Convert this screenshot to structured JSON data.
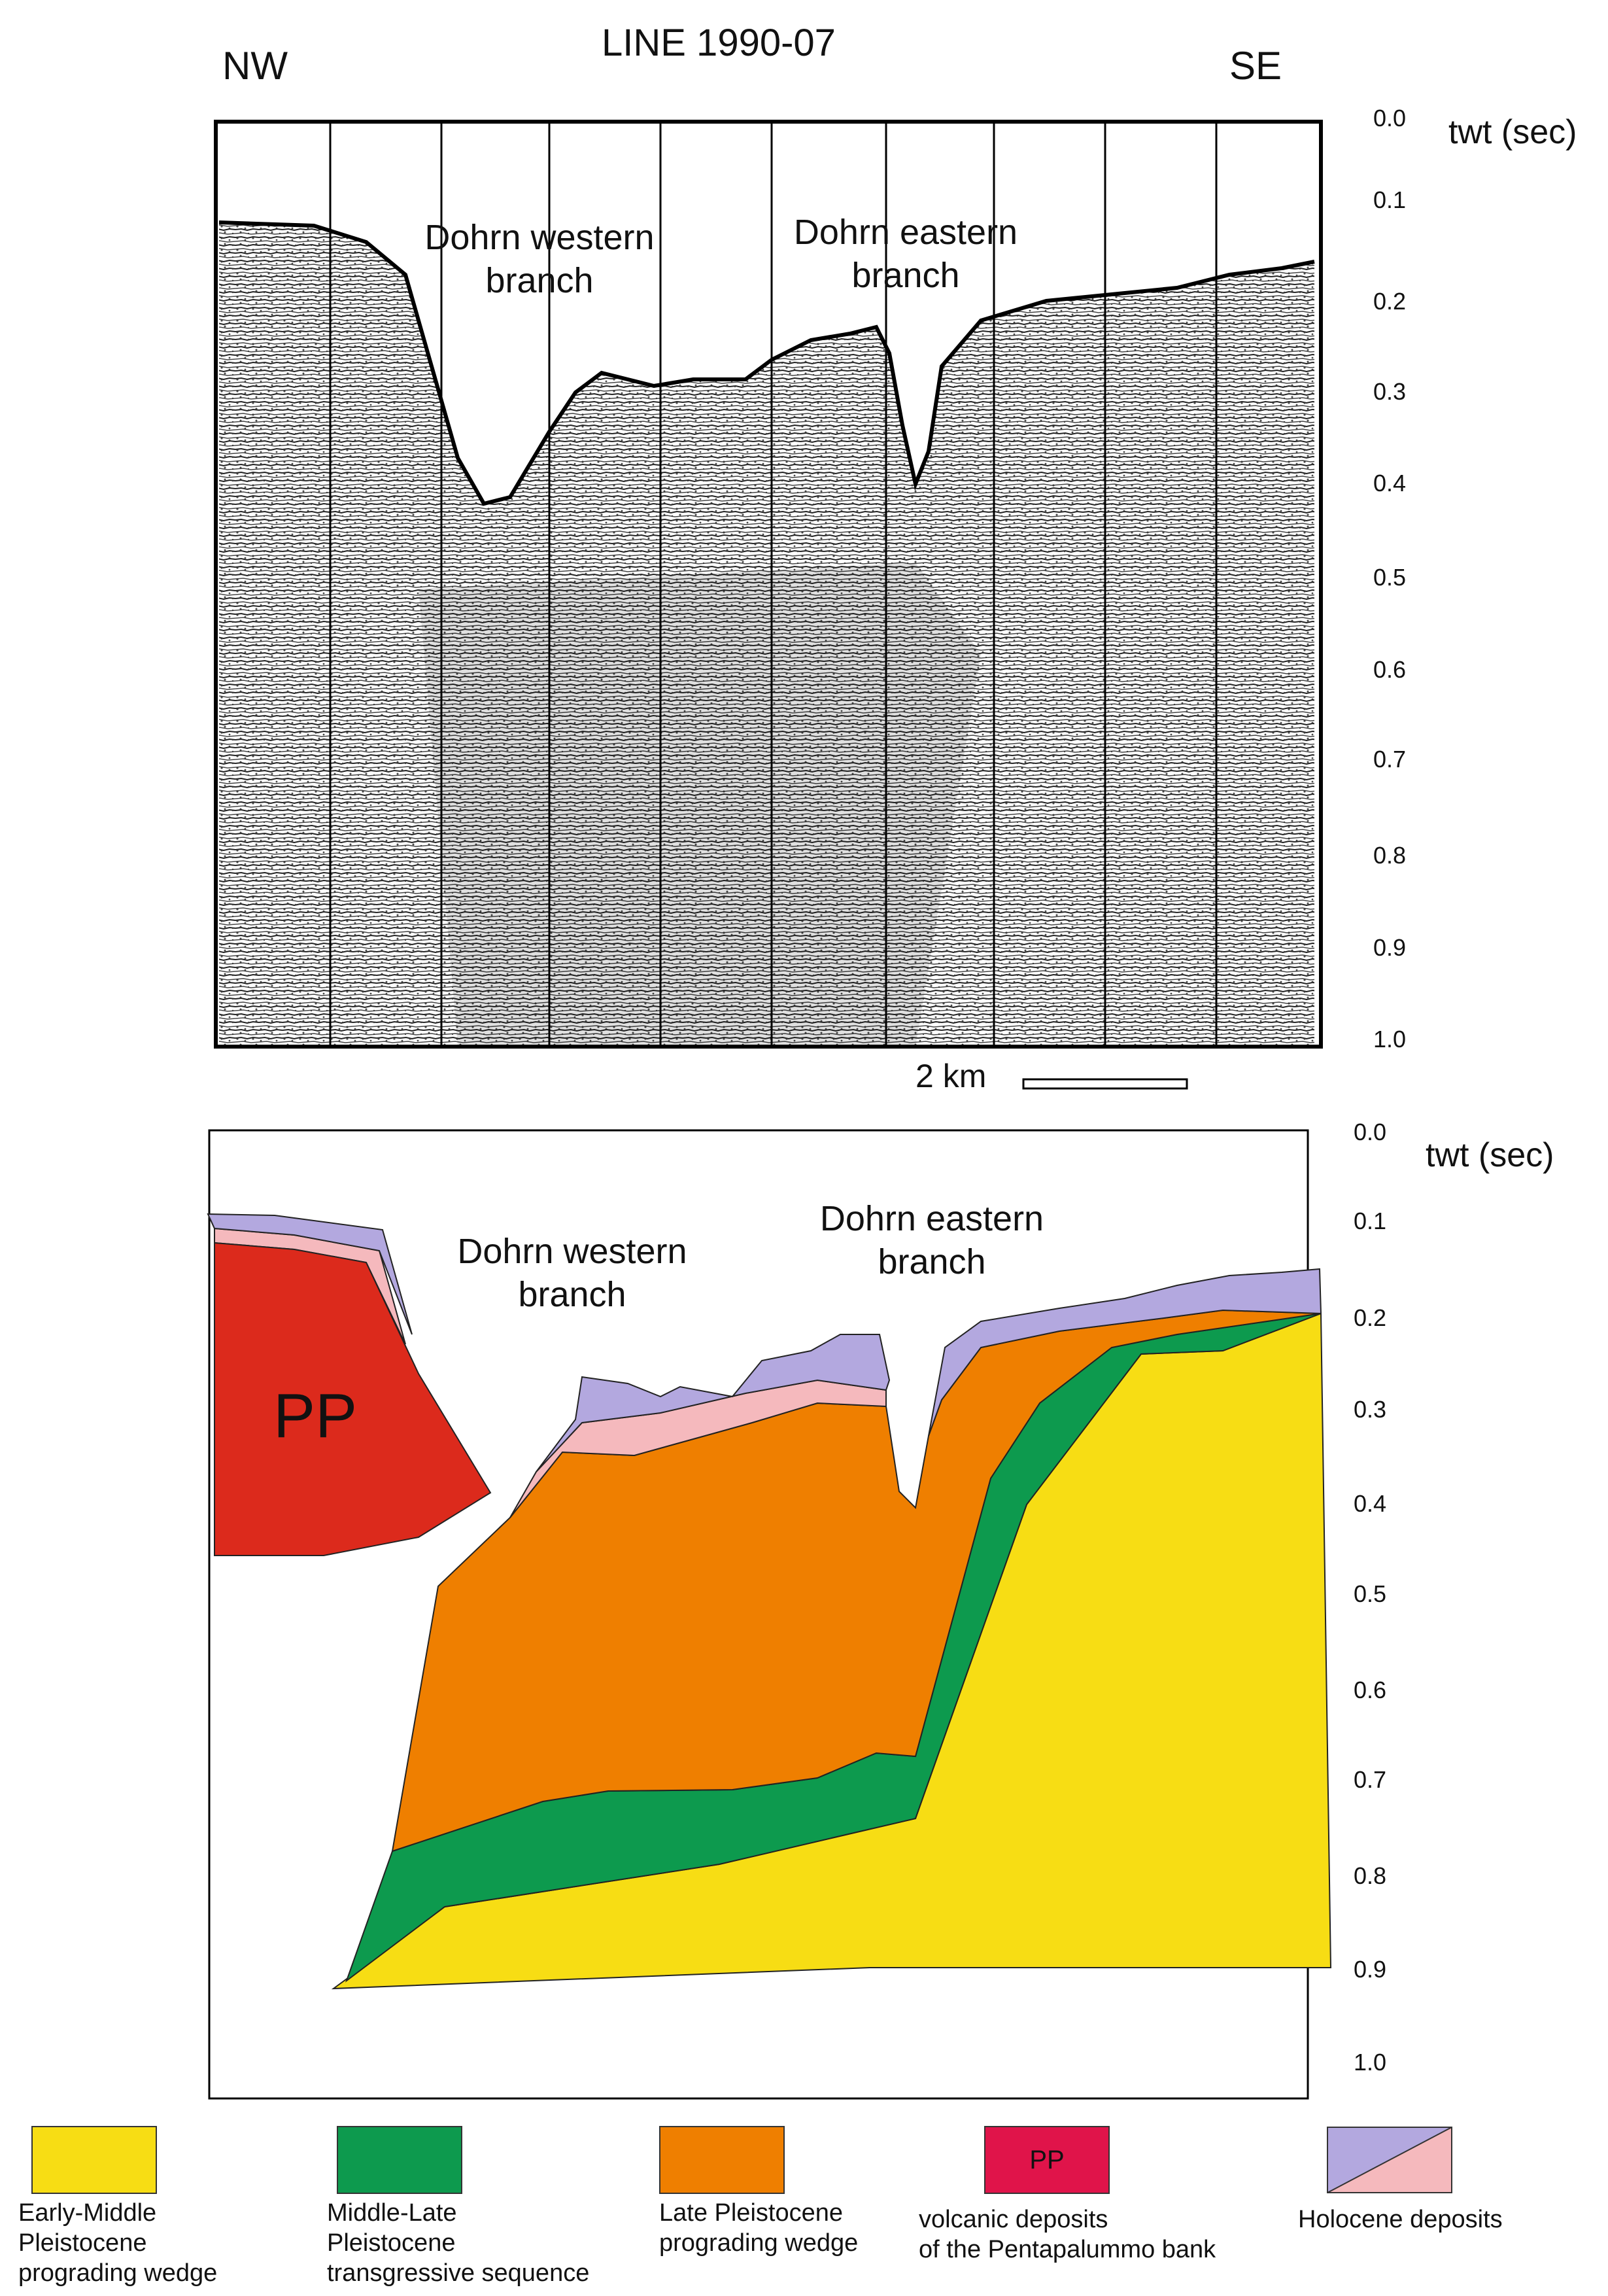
{
  "title": "LINE 1990-07",
  "directions": {
    "left": "NW",
    "right": "SE"
  },
  "seismic_panel": {
    "unit": "twt (sec)",
    "ticks": [
      "0.0",
      "0.1",
      "0.2",
      "0.3",
      "0.4",
      "0.5",
      "0.6",
      "0.7",
      "0.8",
      "0.9",
      "1.0"
    ],
    "labels": {
      "western": "Dohrn western\nbranch",
      "eastern": "Dohrn eastern\nbranch"
    },
    "scale_label": "2 km"
  },
  "interpretation_panel": {
    "unit": "twt (sec)",
    "ticks": [
      "0.0",
      "0.1",
      "0.2",
      "0.3",
      "0.4",
      "0.5",
      "0.6",
      "0.7",
      "0.8",
      "0.9",
      "1.0"
    ],
    "labels": {
      "western": "Dohrn western\nbranch",
      "eastern": "Dohrn eastern\nbranch",
      "pp": "PP"
    }
  },
  "colors": {
    "early_middle": "#f7dd14",
    "middle_late": "#0d9a4e",
    "late": "#ef7f00",
    "volcanic": "#dc2a1c",
    "volcanic_swatch": "#e0144a",
    "holocene_purple": "#b3a8df",
    "holocene_pink": "#f5b9bd"
  },
  "legend": [
    {
      "key": "early_middle",
      "label": "Early-Middle\nPleistocene\nprograding wedge"
    },
    {
      "key": "middle_late",
      "label": "Middle-Late\nPleistocene\ntransgressive sequence"
    },
    {
      "key": "late",
      "label": "Late Pleistocene\nprograding wedge"
    },
    {
      "key": "volcanic",
      "label": "volcanic deposits\nof the Pentapalummo bank",
      "swatch_text": "PP"
    },
    {
      "key": "holocene",
      "label": "Holocene deposits"
    }
  ]
}
